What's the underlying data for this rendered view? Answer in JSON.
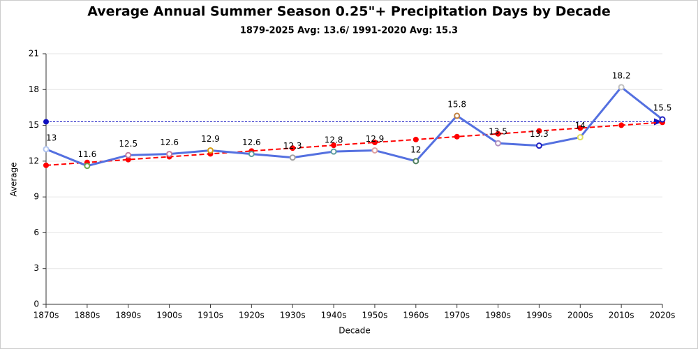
{
  "chart_data": {
    "type": "line",
    "title": "Average Annual Summer Season 0.25\"+ Precipitation Days by Decade",
    "subtitle": "1879-2025 Avg: 13.6/ 1991-2020 Avg: 15.3",
    "x_label": "Decade",
    "y_label": "Average",
    "categories": [
      "1870s",
      "1880s",
      "1890s",
      "1900s",
      "1910s",
      "1920s",
      "1930s",
      "1940s",
      "1950s",
      "1960s",
      "1970s",
      "1980s",
      "1990s",
      "2000s",
      "2010s",
      "2020s"
    ],
    "series": [
      {
        "color": "#5470e0",
        "dash": false,
        "show_labels": true,
        "values": [
          13,
          11.6,
          12.5,
          12.6,
          12.9,
          12.6,
          12.3,
          12.8,
          12.9,
          12,
          15.8,
          13.5,
          13.3,
          14,
          18.2,
          15.5
        ],
        "marker_colors": [
          "#b0c4f0",
          "#6aa84f",
          "#c27ba0",
          "#c27ba0",
          "#d4a017",
          "#5f9ea0",
          "#a0a0a0",
          "#5f9ea0",
          "#e0a0a0",
          "#4f7f5f",
          "#c08040",
          "#b090c0",
          "#2020c0",
          "#e0e060",
          "#c0c0c0",
          "#2020c0"
        ]
      },
      {
        "color": "#ff0000",
        "dash": true,
        "show_labels": false,
        "values": [
          11.65,
          11.89,
          12.13,
          12.37,
          12.61,
          12.85,
          13.09,
          13.33,
          13.57,
          13.81,
          14.05,
          14.29,
          14.53,
          14.77,
          15.01,
          15.25
        ]
      }
    ],
    "reference_line": {
      "value": 15.3,
      "color": "#1010c0"
    },
    "ylim": [
      0,
      21
    ],
    "yticks": [
      0,
      3,
      6,
      9,
      12,
      15,
      18,
      21
    ],
    "grid": true
  }
}
